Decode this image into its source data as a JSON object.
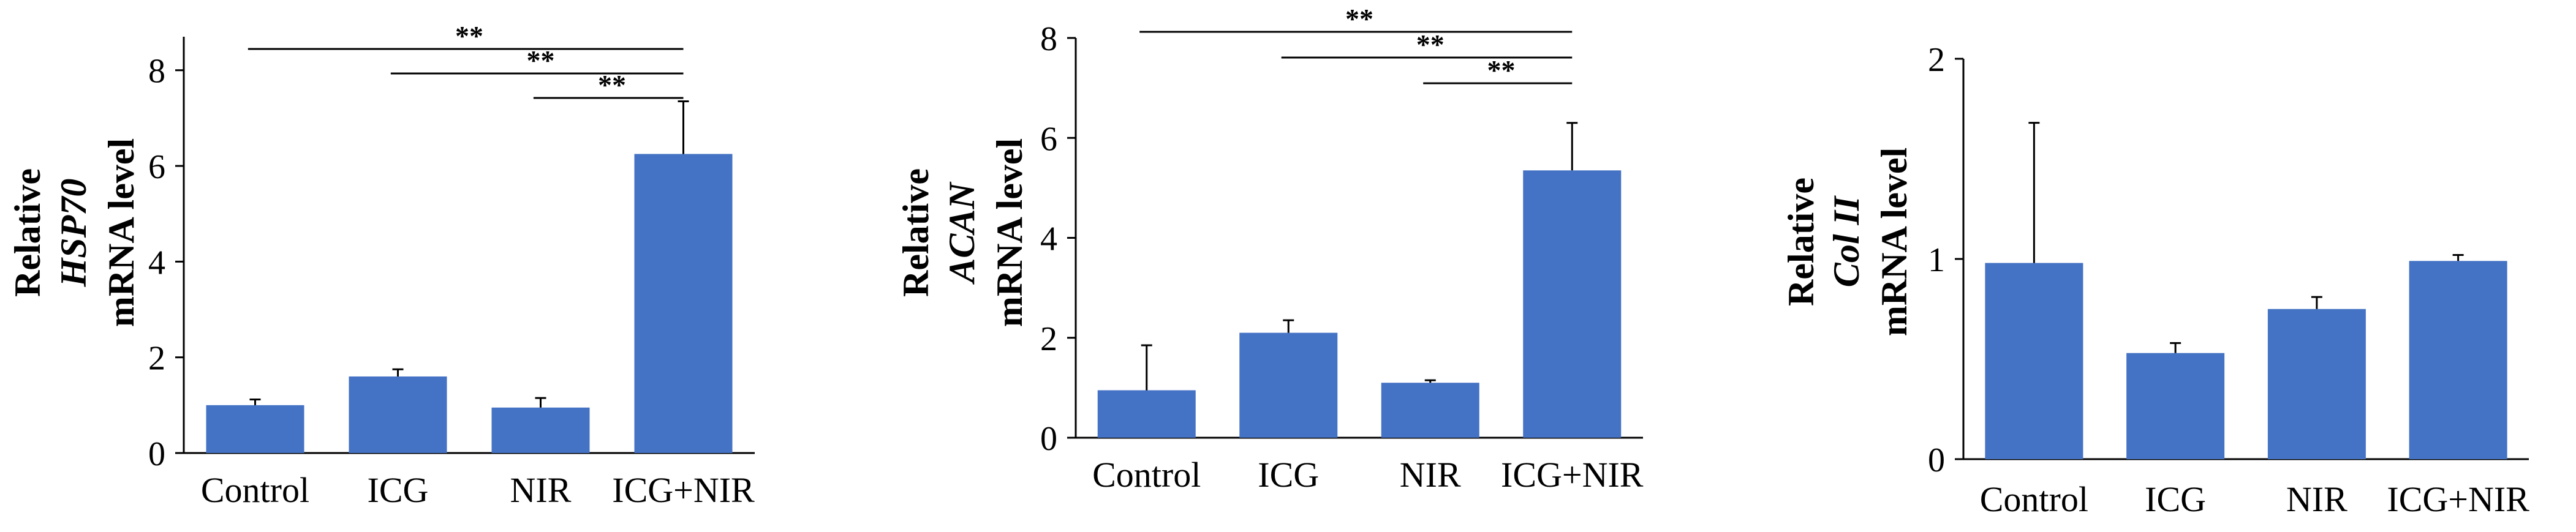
{
  "colors": {
    "bar": "#4472c4",
    "axis": "#000000",
    "text": "#000000"
  },
  "chart_data": [
    {
      "type": "bar",
      "categories": [
        "Control",
        "ICG",
        "NIR",
        "ICG+NIR"
      ],
      "values": [
        1.0,
        1.6,
        0.95,
        6.25
      ],
      "errors": [
        0.12,
        0.15,
        0.2,
        1.1
      ],
      "ylabel": [
        "Relative",
        "HSP70",
        "mRNA level"
      ],
      "ylim": [
        0,
        8.7
      ],
      "yticks": [
        "0",
        "2",
        "4",
        "6",
        "8"
      ],
      "significance": [
        {
          "from": "Control",
          "to": "ICG+NIR",
          "label": "**"
        },
        {
          "from": "ICG",
          "to": "ICG+NIR",
          "label": "**"
        },
        {
          "from": "NIR",
          "to": "ICG+NIR",
          "label": "**"
        }
      ]
    },
    {
      "type": "bar",
      "categories": [
        "Control",
        "ICG",
        "NIR",
        "ICG+NIR"
      ],
      "values": [
        0.95,
        2.1,
        1.1,
        5.35
      ],
      "errors": [
        0.9,
        0.25,
        0.05,
        0.95
      ],
      "ylabel": [
        "Relative",
        "ACAN",
        "mRNA level"
      ],
      "ylim": [
        0,
        8
      ],
      "yticks": [
        "0",
        "2",
        "4",
        "6",
        "8"
      ],
      "significance": [
        {
          "from": "Control",
          "to": "ICG+NIR",
          "label": "**"
        },
        {
          "from": "ICG",
          "to": "ICG+NIR",
          "label": "**"
        },
        {
          "from": "NIR",
          "to": "ICG+NIR",
          "label": "**"
        }
      ]
    },
    {
      "type": "bar",
      "categories": [
        "Control",
        "ICG",
        "NIR",
        "ICG+NIR"
      ],
      "values": [
        0.98,
        0.53,
        0.75,
        0.99
      ],
      "errors": [
        0.7,
        0.05,
        0.06,
        0.03
      ],
      "ylabel": [
        "Relative",
        "Col II",
        "mRNA level"
      ],
      "ylim": [
        0,
        2
      ],
      "yticks": [
        "0",
        "1",
        "2"
      ],
      "significance": []
    }
  ]
}
